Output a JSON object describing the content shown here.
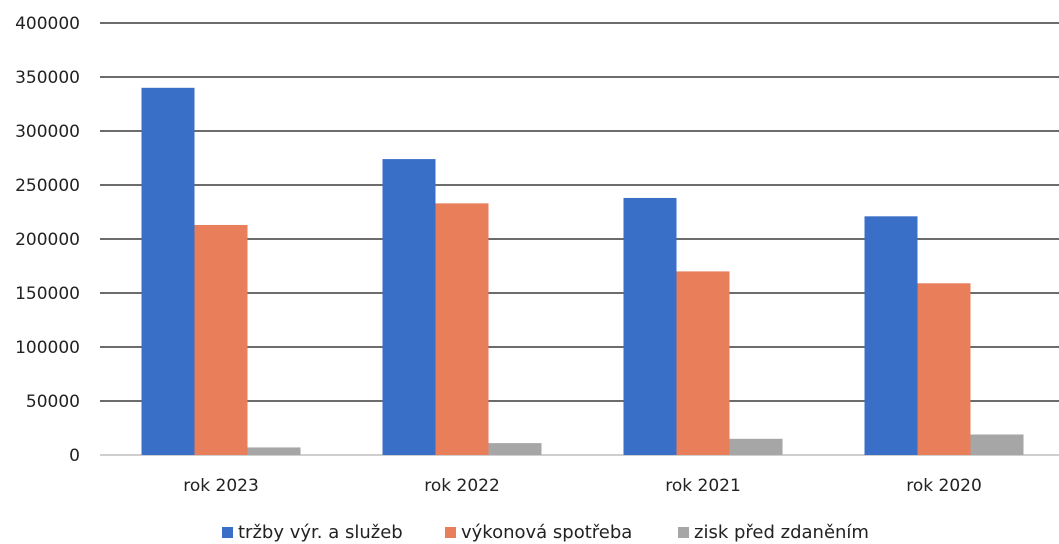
{
  "chart_data": {
    "type": "bar",
    "categories": [
      "rok 2023",
      "rok 2022",
      "rok 2021",
      "rok 2020"
    ],
    "series": [
      {
        "name": "tržby výr. a služeb",
        "values": [
          340000,
          274000,
          238000,
          221000
        ],
        "color": "#3a6fc8"
      },
      {
        "name": "výkonová spotřeba",
        "values": [
          213000,
          233000,
          170000,
          159000
        ],
        "color": "#e87e5a"
      },
      {
        "name": "zisk před zdaněním",
        "values": [
          7000,
          11000,
          15000,
          19000
        ],
        "color": "#a6a6a6"
      }
    ],
    "ylim": [
      0,
      400000
    ],
    "yticks": [
      "0",
      "50000",
      "100000",
      "150000",
      "200000",
      "250000",
      "300000",
      "350000",
      "400000"
    ],
    "grid": true,
    "legend": "bottom",
    "title": "",
    "xlabel": "",
    "ylabel": ""
  }
}
